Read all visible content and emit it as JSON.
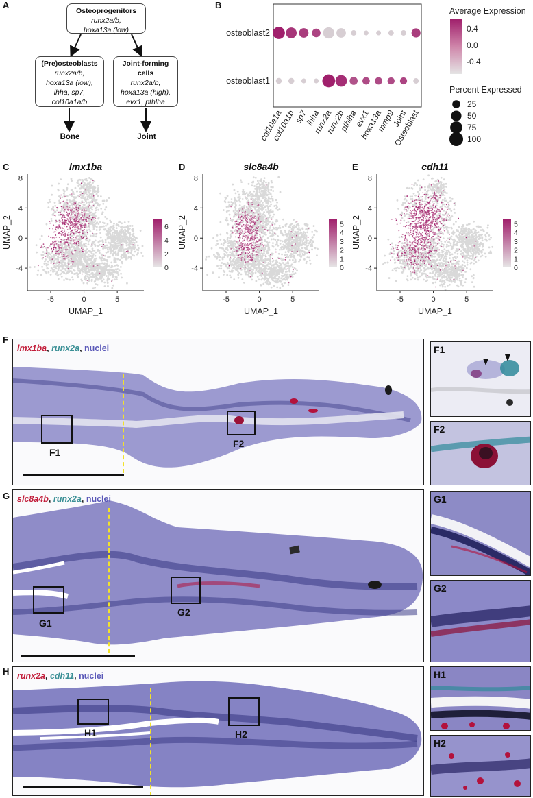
{
  "panels": {
    "A": "A",
    "B": "B",
    "C": "C",
    "D": "D",
    "E": "E",
    "F": "F",
    "G": "G",
    "H": "H"
  },
  "flowchart": {
    "top": {
      "title": "Osteoprogenitors",
      "lines": [
        "runx2a/b,",
        "hoxa13a (low)"
      ]
    },
    "left": {
      "title": "(Pre)osteoblasts",
      "lines": [
        "runx2a/b,",
        "hoxa13a (low),",
        "ihha, sp7,",
        "col10a1a/b"
      ]
    },
    "right": {
      "title_lines": [
        "Joint-forming",
        "cells"
      ],
      "lines": [
        "runx2a/b,",
        "hoxa13a (high),",
        "evx1, pthlha"
      ]
    },
    "out_left": "Bone",
    "out_right": "Joint"
  },
  "chart_data": [
    {
      "type": "scatter",
      "subtype": "dotplot",
      "rows": [
        "osteoblast2",
        "osteoblast1"
      ],
      "categories": [
        "col10a1a",
        "col10a1b",
        "sp7",
        "ihha",
        "runx2a",
        "runx2b",
        "pthlha",
        "evx1",
        "hoxa13a",
        "mmp9",
        "Joint",
        "Osteoblast"
      ],
      "series": [
        {
          "name": "osteoblast2",
          "avg_expression": [
            0.7,
            0.55,
            0.5,
            0.45,
            -0.5,
            -0.5,
            -0.5,
            -0.5,
            -0.5,
            -0.5,
            -0.5,
            0.5
          ],
          "percent_expressed": [
            75,
            55,
            40,
            30,
            60,
            40,
            8,
            5,
            5,
            8,
            8,
            35
          ]
        },
        {
          "name": "osteoblast1",
          "avg_expression": [
            -0.5,
            -0.5,
            -0.5,
            -0.5,
            0.7,
            0.6,
            0.35,
            0.4,
            0.4,
            0.4,
            0.45,
            -0.5
          ],
          "percent_expressed": [
            10,
            10,
            5,
            5,
            85,
            65,
            25,
            20,
            20,
            18,
            18,
            8
          ]
        }
      ],
      "legend": {
        "color_title": "Average Expression",
        "color_ticks": [
          "0.4",
          "0.0",
          "-0.4"
        ],
        "size_title": "Percent Expressed",
        "size_ticks": [
          "25",
          "50",
          "75",
          "100"
        ]
      },
      "colors": {
        "low": "#dcdcdc",
        "high": "#a0206c"
      }
    },
    {
      "type": "scatter",
      "subtype": "umap-featureplot",
      "title": "lmx1ba",
      "xlabel": "UMAP_1",
      "ylabel": "UMAP_2",
      "xticks": [
        "-5",
        "0",
        "5"
      ],
      "yticks": [
        "8",
        "4",
        "0",
        "-4"
      ],
      "colorbar_ticks": [
        "6",
        "4",
        "2",
        "0"
      ]
    },
    {
      "type": "scatter",
      "subtype": "umap-featureplot",
      "title": "slc8a4b",
      "xlabel": "UMAP_1",
      "ylabel": "UMAP_2",
      "xticks": [
        "-5",
        "0",
        "5"
      ],
      "yticks": [
        "8",
        "4",
        "0",
        "-4"
      ],
      "colorbar_ticks": [
        "5",
        "4",
        "3",
        "2",
        "1",
        "0"
      ]
    },
    {
      "type": "scatter",
      "subtype": "umap-featureplot",
      "title": "cdh11",
      "xlabel": "UMAP_1",
      "ylabel": "UMAP_2",
      "xticks": [
        "-5",
        "0",
        "5"
      ],
      "yticks": [
        "8",
        "4",
        "0",
        "-4"
      ],
      "colorbar_ticks": [
        "5",
        "4",
        "3",
        "2",
        "1",
        "0"
      ]
    }
  ],
  "micrographs": {
    "F": {
      "legend_g1": "lmx1ba",
      "legend_g2": "runx2a",
      "legend_g3": "nuclei",
      "sep": ",",
      "roi1": "F1",
      "roi2": "F2"
    },
    "G": {
      "legend_g1": "slc8a4b",
      "legend_g2": "runx2a",
      "legend_g3": "nuclei",
      "sep": ",",
      "roi1": "G1",
      "roi2": "G2"
    },
    "H": {
      "legend_g1": "runx2a",
      "legend_g2": "cdh11",
      "legend_g3": "nuclei",
      "sep": ",",
      "roi1": "H1",
      "roi2": "H2"
    }
  },
  "insets": [
    "F1",
    "F2",
    "G1",
    "G2",
    "H1",
    "H2"
  ],
  "colors": {
    "tissue": "#8f8cc8",
    "tissue_dark": "#4a4a92",
    "red_stain": "#b3123c",
    "teal_stain": "#2f8a9a",
    "background": "#f4f4f8"
  }
}
